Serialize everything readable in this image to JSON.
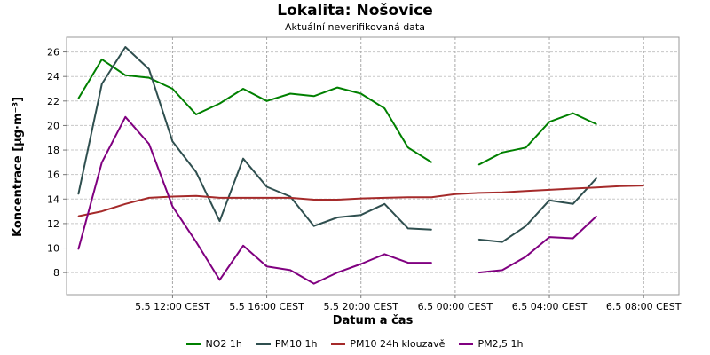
{
  "chart_data": {
    "type": "line",
    "title": "Lokalita: Nošovice",
    "subtitle": "Aktuální neverifikovaná data",
    "xlabel": "Datum a čas",
    "ylabel": "Koncentrace [µg·m⁻³]",
    "x_ticks": [
      {
        "x": 12,
        "label": "5.5 12:00 CEST"
      },
      {
        "x": 16,
        "label": "5.5 16:00 CEST"
      },
      {
        "x": 20,
        "label": "5.5 20:00 CEST"
      },
      {
        "x": 24,
        "label": "6.5 00:00 CEST"
      },
      {
        "x": 28,
        "label": "6.5 04:00 CEST"
      },
      {
        "x": 32,
        "label": "6.5 08:00 CEST"
      }
    ],
    "xlim": [
      7.5,
      33.5
    ],
    "ylim": [
      6.2,
      27.2
    ],
    "y_ticks": [
      8,
      10,
      12,
      14,
      16,
      18,
      20,
      22,
      24,
      26
    ],
    "grid": true,
    "legend_position": "bottom",
    "x": [
      8,
      9,
      10,
      11,
      12,
      13,
      14,
      15,
      16,
      17,
      18,
      19,
      20,
      21,
      22,
      23,
      24,
      25,
      26,
      27,
      28,
      29,
      30,
      31,
      32
    ],
    "series": [
      {
        "name": "NO2 1h",
        "color": "#008000",
        "values": [
          22.2,
          25.4,
          24.1,
          23.9,
          23.0,
          20.9,
          21.8,
          23.0,
          22.0,
          22.6,
          22.4,
          23.1,
          22.6,
          21.4,
          18.2,
          17.0,
          null,
          16.8,
          17.8,
          18.2,
          20.3,
          21.0,
          20.1,
          null,
          null
        ]
      },
      {
        "name": "PM10 1h",
        "color": "#2f4f4f",
        "values": [
          14.4,
          23.4,
          26.4,
          24.6,
          18.7,
          16.2,
          12.2,
          17.3,
          15.0,
          14.2,
          11.8,
          12.5,
          12.7,
          13.6,
          11.6,
          11.5,
          null,
          10.7,
          10.5,
          11.8,
          13.9,
          13.6,
          15.7,
          null,
          null
        ]
      },
      {
        "name": "PM10 24h klouzavě",
        "color": "#a52a2a",
        "values": [
          12.6,
          13.0,
          13.6,
          14.1,
          14.2,
          14.25,
          14.1,
          14.1,
          14.1,
          14.1,
          13.95,
          13.95,
          14.05,
          14.1,
          14.15,
          14.15,
          14.4,
          14.5,
          14.55,
          14.65,
          14.75,
          14.85,
          14.95,
          15.05,
          15.1
        ]
      },
      {
        "name": "PM2,5 1h",
        "color": "#800080",
        "values": [
          9.9,
          17.0,
          20.7,
          18.5,
          13.4,
          10.5,
          7.4,
          10.2,
          8.5,
          8.2,
          7.1,
          8.0,
          8.7,
          9.5,
          8.8,
          8.8,
          null,
          8.0,
          8.2,
          9.3,
          10.9,
          10.8,
          12.6,
          null,
          null
        ]
      }
    ]
  }
}
